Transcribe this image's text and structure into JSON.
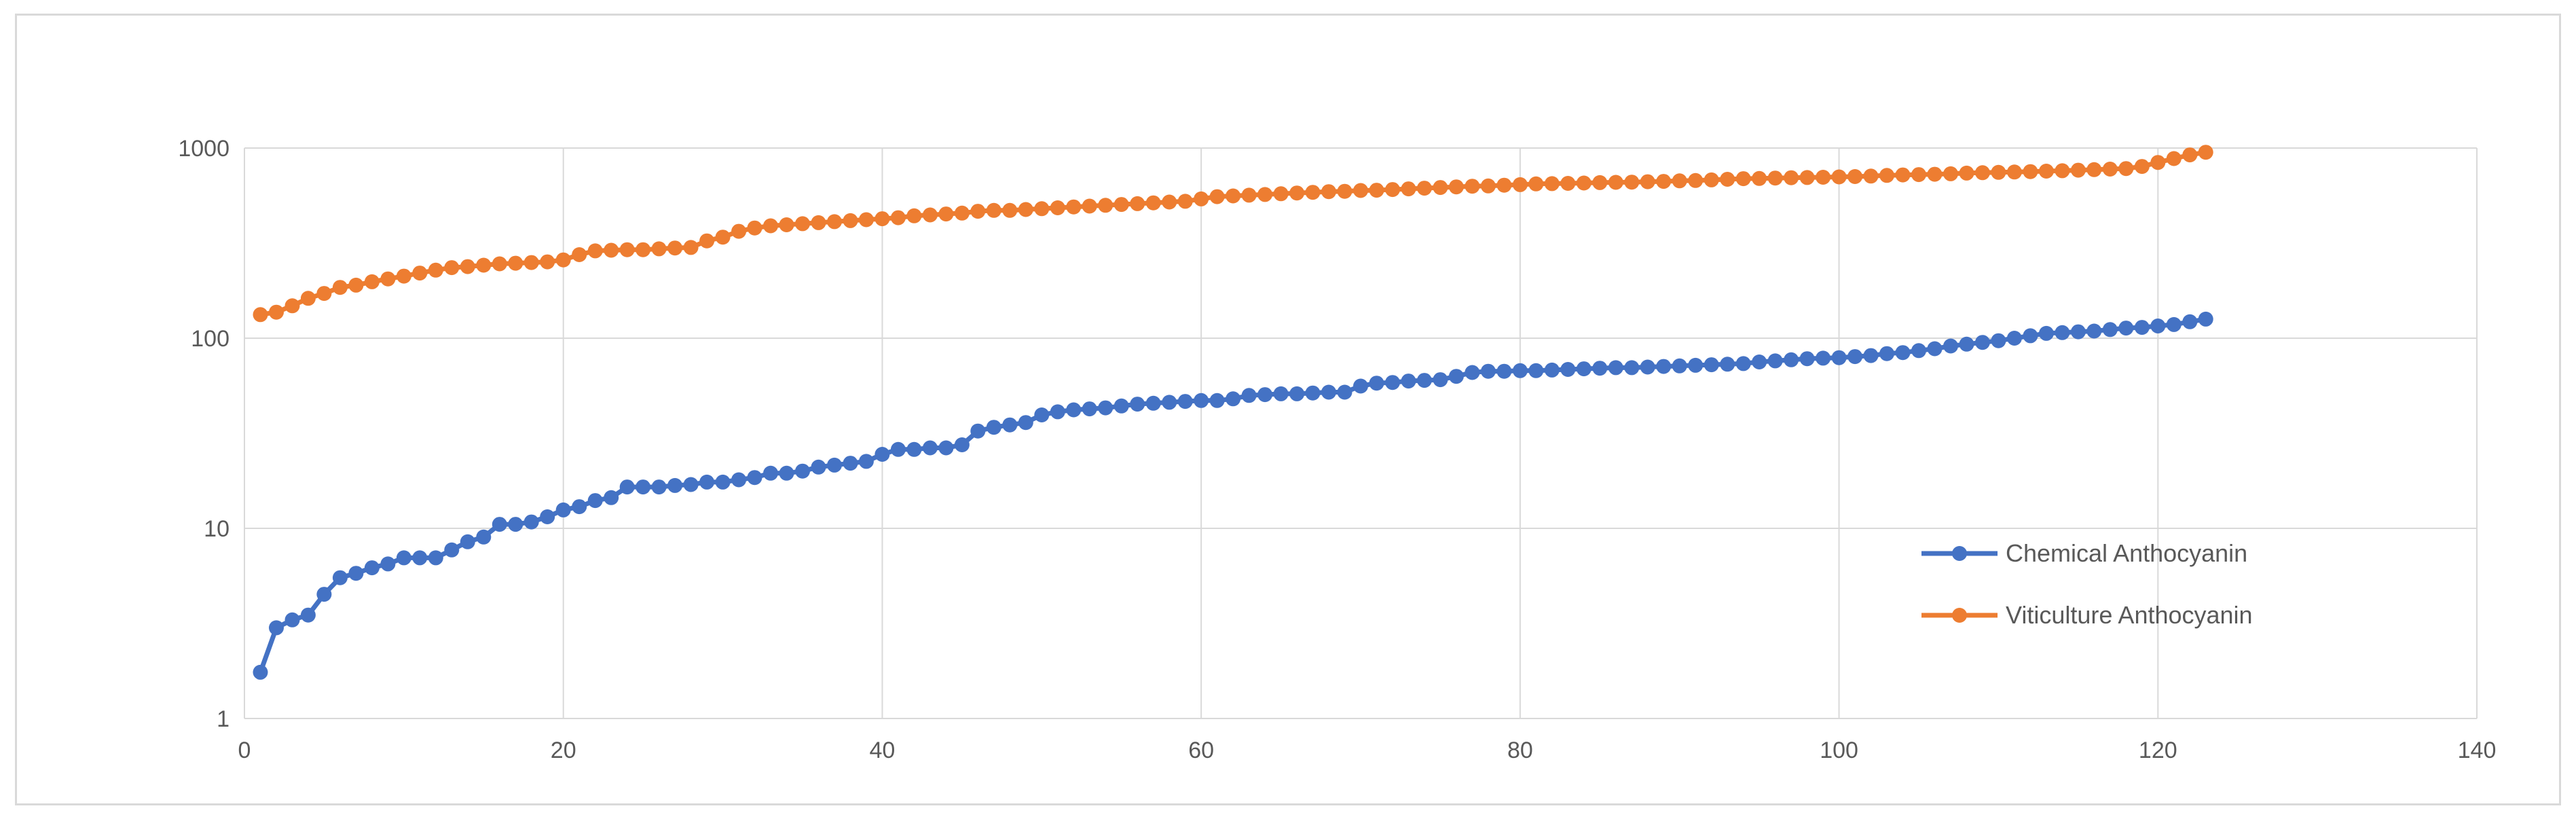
{
  "chart_data": {
    "type": "line",
    "title": "",
    "xlabel": "",
    "ylabel": "",
    "xlim": [
      0,
      140
    ],
    "ylim": [
      1,
      1000
    ],
    "yscale": "log",
    "x_ticks": [
      "0",
      "20",
      "40",
      "60",
      "80",
      "100",
      "120",
      "140"
    ],
    "y_ticks": [
      "1",
      "10",
      "100",
      "1000"
    ],
    "grid": true,
    "legend_position": "right",
    "x": [
      1,
      2,
      3,
      4,
      5,
      6,
      7,
      8,
      9,
      10,
      11,
      12,
      13,
      14,
      15,
      16,
      17,
      18,
      19,
      20,
      21,
      22,
      23,
      24,
      25,
      26,
      27,
      28,
      29,
      30,
      31,
      32,
      33,
      34,
      35,
      36,
      37,
      38,
      39,
      40,
      41,
      42,
      43,
      44,
      45,
      46,
      47,
      48,
      49,
      50,
      51,
      52,
      53,
      54,
      55,
      56,
      57,
      58,
      59,
      60,
      61,
      62,
      63,
      64,
      65,
      66,
      67,
      68,
      69,
      70,
      71,
      72,
      73,
      74,
      75,
      76,
      77,
      78,
      79,
      80,
      81,
      82,
      83,
      84,
      85,
      86,
      87,
      88,
      89,
      90,
      91,
      92,
      93,
      94,
      95,
      96,
      97,
      98,
      99,
      100,
      101,
      102,
      103,
      104,
      105,
      106,
      107,
      108,
      109,
      110,
      111,
      112,
      113,
      114,
      115,
      116,
      117,
      118,
      119,
      120,
      121,
      122,
      123
    ],
    "series": [
      {
        "name": "Chemical Anthocyanin",
        "color": "#4472c4",
        "values": [
          1.75,
          3.0,
          3.3,
          3.5,
          4.5,
          5.5,
          5.8,
          6.2,
          6.5,
          7.0,
          7.0,
          7.0,
          7.7,
          8.5,
          9.0,
          10.5,
          10.5,
          10.8,
          11.5,
          12.5,
          13.0,
          14.0,
          14.5,
          16.5,
          16.5,
          16.5,
          16.8,
          17.0,
          17.5,
          17.5,
          18.0,
          18.5,
          19.5,
          19.5,
          20.0,
          21.0,
          21.5,
          22.0,
          22.5,
          24.5,
          26.0,
          26.0,
          26.5,
          26.5,
          27.5,
          32.5,
          34.0,
          35.0,
          36.0,
          39.5,
          41.0,
          42.0,
          42.5,
          43.0,
          44.0,
          45.0,
          45.5,
          46.0,
          46.5,
          47.0,
          47.0,
          48.0,
          50.0,
          50.5,
          51.0,
          51.0,
          51.5,
          52.0,
          52.0,
          56.0,
          58.0,
          58.5,
          59.5,
          60.0,
          60.5,
          63.0,
          66.0,
          67.0,
          67.0,
          67.5,
          67.5,
          68.0,
          68.5,
          69.0,
          69.5,
          70.0,
          70.0,
          70.5,
          71.0,
          71.5,
          72.0,
          72.5,
          73.0,
          73.5,
          75.0,
          76.0,
          77.0,
          78.0,
          78.5,
          79.0,
          80.0,
          81.0,
          83.0,
          84.0,
          86.0,
          88.0,
          91.0,
          93.0,
          95.0,
          97.0,
          100.0,
          103.0,
          106.0,
          107.0,
          108.0,
          109.0,
          111.0,
          113.0,
          114.0,
          116.0,
          118.0,
          122.0,
          126.0
        ]
      },
      {
        "name": "Viticulture Anthocyanin",
        "color": "#ed7d31",
        "values": [
          133,
          137,
          148,
          162,
          172,
          185,
          190,
          198,
          205,
          212,
          220,
          228,
          235,
          238,
          242,
          246,
          248,
          250,
          252,
          258,
          275,
          288,
          290,
          292,
          292,
          295,
          298,
          300,
          325,
          340,
          365,
          380,
          390,
          395,
          400,
          405,
          410,
          415,
          420,
          425,
          430,
          440,
          445,
          450,
          455,
          465,
          470,
          470,
          475,
          480,
          485,
          490,
          495,
          500,
          505,
          510,
          515,
          520,
          525,
          540,
          555,
          560,
          565,
          570,
          575,
          580,
          585,
          590,
          592,
          598,
          600,
          605,
          610,
          615,
          620,
          625,
          630,
          632,
          638,
          642,
          648,
          650,
          652,
          655,
          658,
          660,
          662,
          665,
          668,
          672,
          675,
          680,
          685,
          690,
          692,
          695,
          698,
          700,
          702,
          705,
          708,
          712,
          718,
          722,
          725,
          728,
          732,
          738,
          742,
          745,
          748,
          752,
          756,
          760,
          765,
          770,
          775,
          780,
          800,
          840,
          880,
          920,
          950
        ]
      }
    ]
  }
}
